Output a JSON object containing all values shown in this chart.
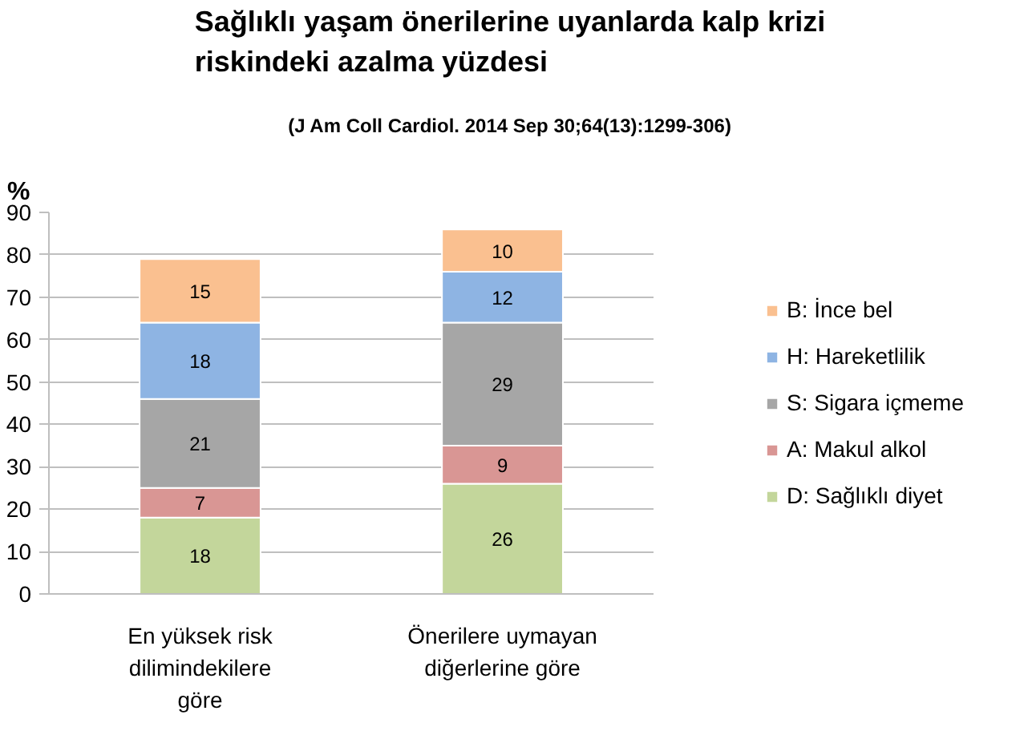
{
  "chart_data": {
    "type": "bar",
    "title": "Sağlıklı yaşam önerilerine uyanlarda kalp krizi riskindeki azalma yüzdesi",
    "subtitle": "(J Am Coll Cardiol. 2014 Sep 30;64(13):1299-306)",
    "ylabel": "%",
    "categories": [
      "En yüksek risk dilimindekilere göre",
      "Önerilere uymayan diğerlerine göre"
    ],
    "stacked": true,
    "series": [
      {
        "name": "D: Sağlıklı diyet",
        "color": "#c3d69b",
        "values": [
          18,
          26
        ]
      },
      {
        "name": "A: Makul alkol",
        "color": "#d99694",
        "values": [
          7,
          9
        ]
      },
      {
        "name": "S: Sigara içmeme",
        "color": "#a6a6a6",
        "values": [
          21,
          29
        ]
      },
      {
        "name": "H: Hareketlilik",
        "color": "#8eb4e3",
        "values": [
          18,
          12
        ]
      },
      {
        "name": "B: İnce bel",
        "color": "#fac090",
        "values": [
          15,
          10
        ]
      }
    ],
    "ylim": [
      0,
      90
    ],
    "yticks": [
      0,
      10,
      20,
      30,
      40,
      50,
      60,
      70,
      80,
      90
    ],
    "grid": "y",
    "legend": "right",
    "data_labels": true
  }
}
